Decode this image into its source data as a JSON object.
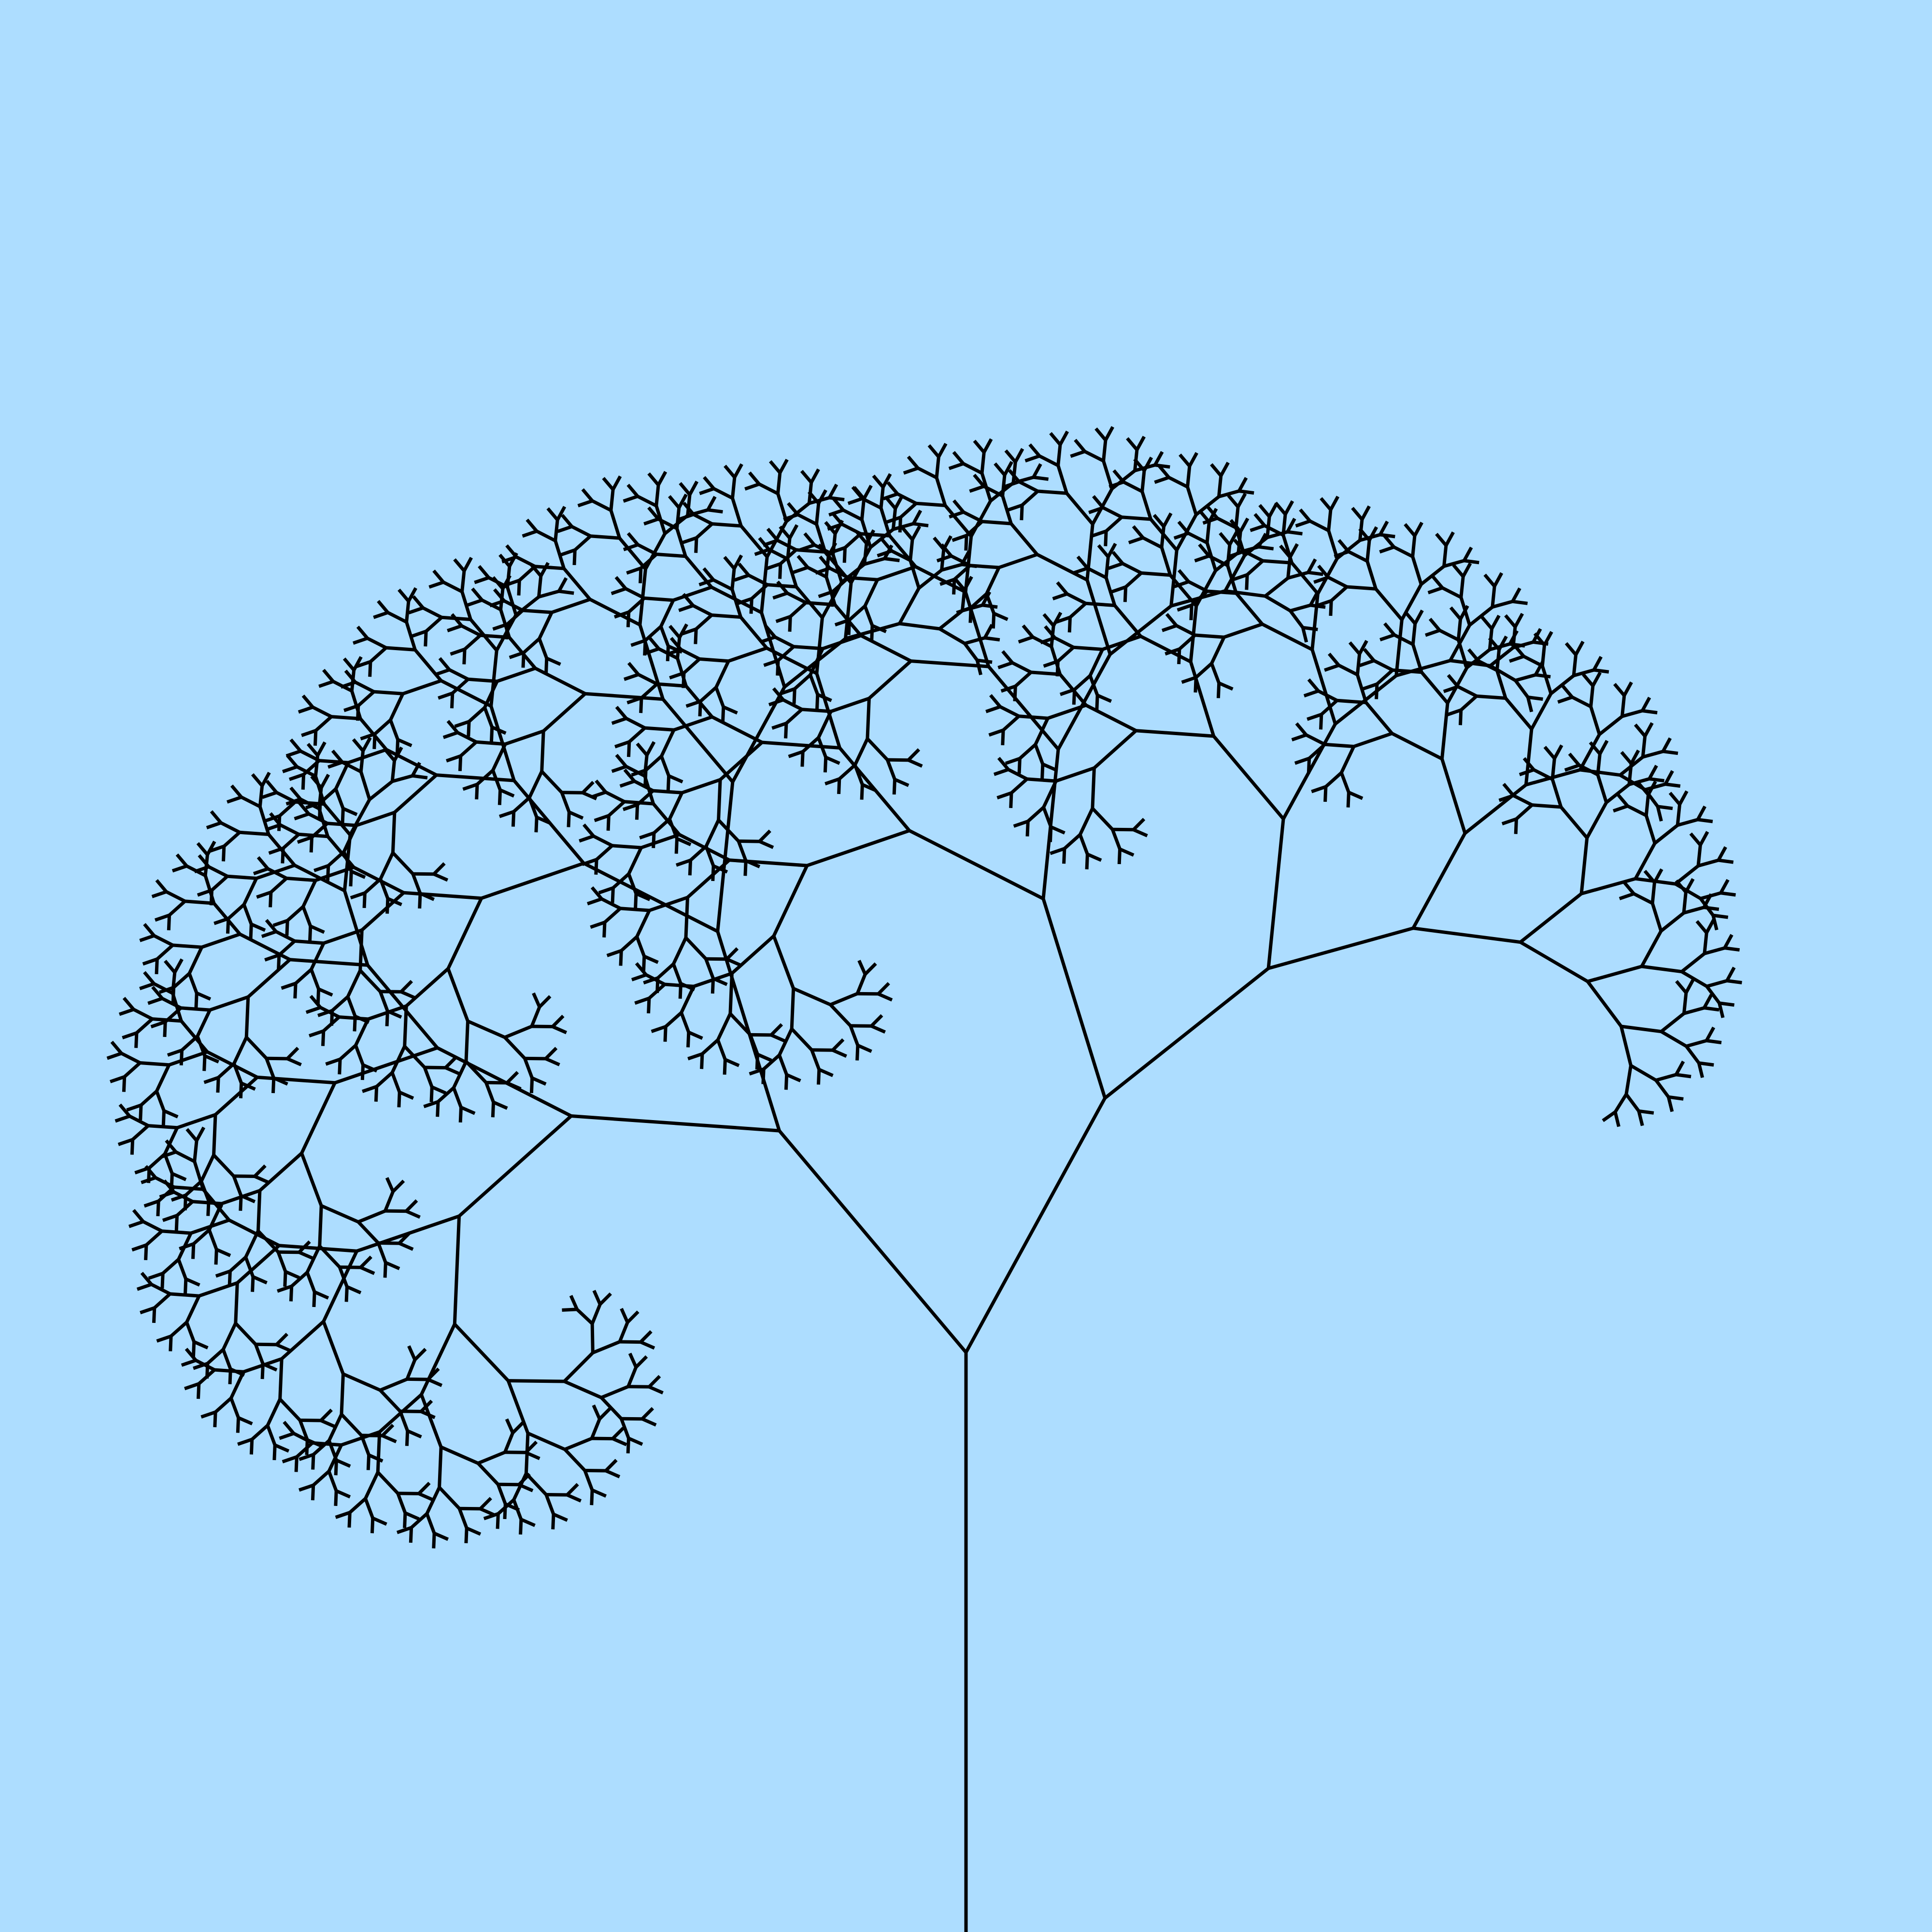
{
  "scene": {
    "background_color": "#ADDDFF",
    "stroke_color": "#000000",
    "subject": "fractal-tree"
  }
}
